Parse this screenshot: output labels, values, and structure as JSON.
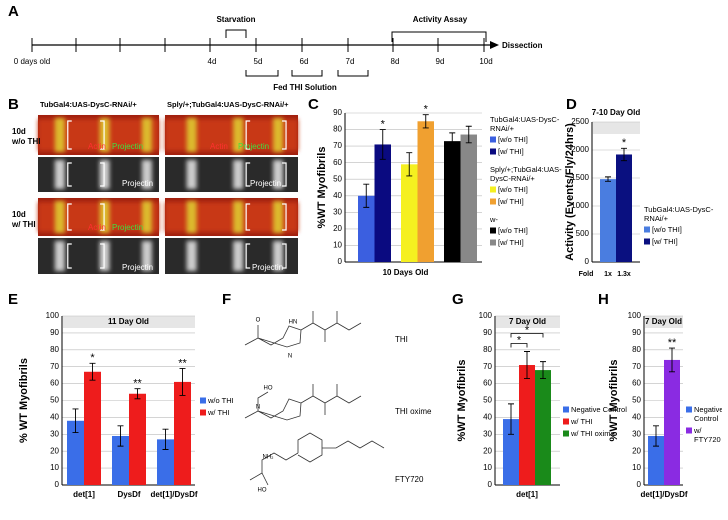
{
  "panel_labels": [
    "A",
    "B",
    "C",
    "D",
    "E",
    "F",
    "G",
    "H"
  ],
  "timeline": {
    "start_label": "0 days old",
    "days": [
      "4d",
      "5d",
      "6d",
      "7d",
      "8d",
      "9d",
      "10d"
    ],
    "starvation": "Starvation",
    "activity": "Activity Assay",
    "end": "Dissection",
    "fed": "Fed THI Solution"
  },
  "micrographs": {
    "columns": [
      "TubGal4:UAS-DysC-RNAi/+",
      "Sply/+;TubGal4:UAS-DysC-RNAi/+"
    ],
    "rows": [
      [
        "10d",
        "w/o THI"
      ],
      [
        "10d",
        "w/ THI"
      ]
    ],
    "actin": "Actin",
    "projectin": "Projectin"
  },
  "structures": [
    "THI",
    "THI oxime",
    "FTY720"
  ],
  "chart_data": [
    {
      "type": "bar",
      "ylabel": "%WT Myofibrils",
      "xlabel": "10 Days Old",
      "categories": [
        null
      ],
      "ylim": [
        0,
        90
      ],
      "yticks": [
        0,
        10,
        20,
        30,
        40,
        50,
        60,
        70,
        80,
        90
      ],
      "grid": true,
      "series": [
        {
          "name": "[w/o THI]",
          "color": "#3b5fe0",
          "values": [
            40
          ],
          "errors": [
            7
          ]
        },
        {
          "name": "[w/ THI]",
          "color": "#0a0a80",
          "values": [
            71
          ],
          "errors": [
            9
          ]
        },
        {
          "name": "[w/o THI]",
          "color": "#f5f020",
          "values": [
            59
          ],
          "errors": [
            7
          ]
        },
        {
          "name": "[w/ THI]",
          "color": "#f0a030",
          "values": [
            85
          ],
          "errors": [
            4
          ]
        },
        {
          "name": "[w/o THI]",
          "color": "#000000",
          "values": [
            73
          ],
          "errors": [
            5
          ]
        },
        {
          "name": "[w/ THI]",
          "color": "#888888",
          "values": [
            77
          ],
          "errors": [
            5
          ]
        }
      ],
      "legend_groups": [
        {
          "title": "TubGal4:UAS-DysC-RNAi/+",
          "series": [
            0,
            1
          ]
        },
        {
          "title": "Sply/+;TubGal4:UAS-DysC-RNAi/+",
          "series": [
            2,
            3
          ]
        },
        {
          "title": "w-",
          "series": [
            4,
            5
          ]
        }
      ],
      "significance": [
        {
          "label": "*",
          "series": 1,
          "category": 0
        },
        {
          "label": "*",
          "series": 3,
          "category": 0
        }
      ]
    },
    {
      "type": "bar",
      "title": "7-10 Day Old",
      "ylabel": "Activity (Events/Fly/24hrs)",
      "categories": [
        null
      ],
      "ylim": [
        0,
        2500
      ],
      "yticks": [
        0,
        500,
        1000,
        1500,
        2000,
        2500
      ],
      "grid": true,
      "series": [
        {
          "name": "[w/o THI]",
          "color": "#4a7de0",
          "values": [
            1480
          ],
          "errors": [
            40
          ]
        },
        {
          "name": "[w/ THI]",
          "color": "#0a1080",
          "values": [
            1920
          ],
          "errors": [
            110
          ]
        }
      ],
      "legend_groups": [
        {
          "title": "TubGal4:UAS-DysC-RNAi/+",
          "series": [
            0,
            1
          ]
        }
      ],
      "fold": {
        "label": "Fold",
        "values": [
          "1x",
          "1.3x"
        ]
      },
      "significance": [
        {
          "label": "*",
          "series": 1,
          "category": 0
        }
      ]
    },
    {
      "type": "bar",
      "title": "11 Day Old",
      "ylabel": "% WT Myofibrils",
      "categories": [
        "det[1]",
        "DysDf",
        "det[1]/DysDf"
      ],
      "ylim": [
        0,
        100
      ],
      "yticks": [
        0,
        10,
        20,
        30,
        40,
        50,
        60,
        70,
        80,
        90,
        100
      ],
      "grid": true,
      "series": [
        {
          "name": "w/o THI",
          "color": "#3a6ee8",
          "values": [
            38,
            29,
            27
          ],
          "errors": [
            7,
            6,
            6
          ]
        },
        {
          "name": "w/ THI",
          "color": "#ee1c1c",
          "values": [
            67,
            54,
            61
          ],
          "errors": [
            5,
            3,
            8
          ]
        }
      ],
      "significance": [
        {
          "label": "*",
          "series": 1,
          "category": 0
        },
        {
          "label": "**",
          "series": 1,
          "category": 1
        },
        {
          "label": "**",
          "series": 1,
          "category": 2
        }
      ]
    },
    {
      "type": "bar",
      "title": "7 Day Old",
      "ylabel": "%WT Myofibrils",
      "categories": [
        "det[1]"
      ],
      "ylim": [
        0,
        100
      ],
      "yticks": [
        0,
        10,
        20,
        30,
        40,
        50,
        60,
        70,
        80,
        90,
        100
      ],
      "grid": true,
      "series": [
        {
          "name": "Negative Control",
          "color": "#3a6ee8",
          "values": [
            39
          ],
          "errors": [
            9
          ]
        },
        {
          "name": "w/ THI",
          "color": "#ee1c1c",
          "values": [
            71
          ],
          "errors": [
            8
          ]
        },
        {
          "name": "w/ THI oxime",
          "color": "#1a8a1a",
          "values": [
            68
          ],
          "errors": [
            5
          ]
        }
      ],
      "significance": [
        {
          "label": "*",
          "from": 0,
          "to": 1,
          "category": 0
        },
        {
          "label": "*",
          "from": 0,
          "to": 2,
          "category": 0
        }
      ]
    },
    {
      "type": "bar",
      "title": "7 Day Old",
      "ylabel": "%WT Myofibrils",
      "categories": [
        "det[1]/DysDf"
      ],
      "ylim": [
        0,
        100
      ],
      "yticks": [
        0,
        10,
        20,
        30,
        40,
        50,
        60,
        70,
        80,
        90,
        100
      ],
      "grid": true,
      "series": [
        {
          "name": "Negative Control",
          "color": "#3a6ee8",
          "values": [
            29
          ],
          "errors": [
            6
          ]
        },
        {
          "name": "w/ FTY720",
          "color": "#8a2be2",
          "values": [
            74
          ],
          "errors": [
            7
          ]
        }
      ],
      "significance": [
        {
          "label": "**",
          "series": 1,
          "category": 0
        }
      ]
    }
  ]
}
